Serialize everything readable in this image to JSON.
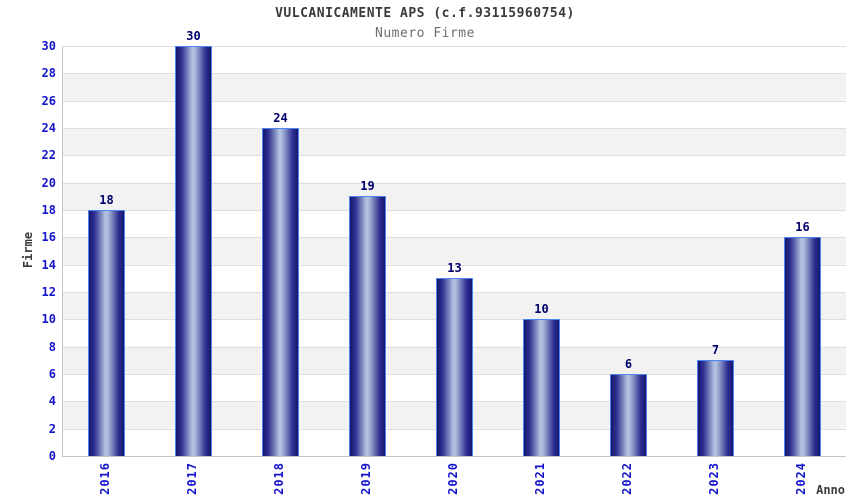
{
  "header": {
    "title": "VULCANICAMENTE APS (c.f.93115960754)",
    "subtitle": "Numero Firme"
  },
  "chart_data": {
    "type": "bar",
    "title": "VULCANICAMENTE APS (c.f.93115960754)",
    "subtitle": "Numero Firme",
    "categories": [
      "2016",
      "2017",
      "2018",
      "2019",
      "2020",
      "2021",
      "2022",
      "2023",
      "2024"
    ],
    "values": [
      18,
      30,
      24,
      19,
      13,
      10,
      6,
      7,
      16
    ],
    "xlabel": "Anno",
    "ylabel": "Firme",
    "ylim": [
      0,
      30
    ],
    "ytick_step": 2,
    "grid": true,
    "legend": "none",
    "colors": {
      "tick_label": "#1414cc",
      "value_label": "#00006e",
      "title_text": "#3a3a3a",
      "subtitle_text": "#6e6e6e",
      "gridline": "#dedede",
      "band_light": "#ffffff",
      "band_dark": "#f2f2f2",
      "bar_border": "#4d86f0",
      "bar_edge": "#16166e",
      "bar_dark": "#2e2e91",
      "bar_mid": "#8a99c7",
      "bar_highlight": "#b3bfe0"
    }
  }
}
